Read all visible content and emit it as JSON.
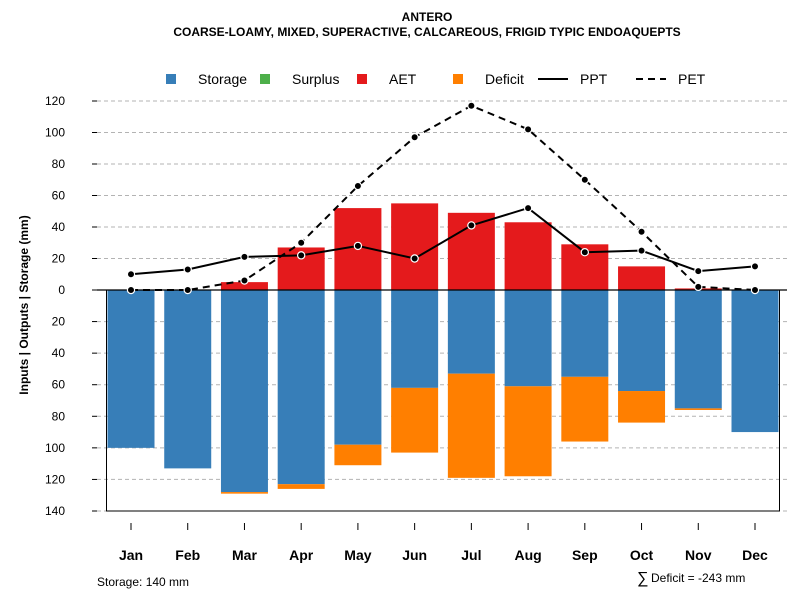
{
  "chart_data": {
    "type": "bar",
    "title": "ANTERO",
    "subtitle": "COARSE-LOAMY, MIXED, SUPERACTIVE, CALCAREOUS, FRIGID TYPIC ENDOAQUEPTS",
    "ylabel": "Inputs | Outputs | Storage    (mm)",
    "categories": [
      "Jan",
      "Feb",
      "Mar",
      "Apr",
      "May",
      "Jun",
      "Jul",
      "Aug",
      "Sep",
      "Oct",
      "Nov",
      "Dec"
    ],
    "upper_ylim": [
      0,
      120
    ],
    "upper_ticks": [
      "0",
      "20",
      "40",
      "60",
      "80",
      "100",
      "120"
    ],
    "lower_ylim": [
      0,
      140
    ],
    "lower_ticks": [
      "20",
      "40",
      "60",
      "80",
      "100",
      "120",
      "140"
    ],
    "legend": [
      {
        "key": "storage",
        "label": "Storage",
        "color": "#377EB8"
      },
      {
        "key": "surplus",
        "label": "Surplus",
        "color": "#4DAF4A"
      },
      {
        "key": "aet",
        "label": "AET",
        "color": "#E41A1C"
      },
      {
        "key": "deficit",
        "label": "Deficit",
        "color": "#FF7F00"
      },
      {
        "key": "ppt",
        "label": "PPT",
        "color": "#000000"
      },
      {
        "key": "pet",
        "label": "PET",
        "color": "#000000"
      }
    ],
    "series": [
      {
        "name": "AET",
        "values": [
          0,
          0,
          5,
          27,
          52,
          55,
          49,
          43,
          29,
          15,
          1,
          0
        ]
      },
      {
        "name": "Surplus",
        "values": [
          0,
          0,
          0,
          0,
          0,
          0,
          0,
          0,
          0,
          0,
          0,
          0
        ]
      },
      {
        "name": "Storage",
        "values": [
          100,
          113,
          128,
          123,
          98,
          62,
          53,
          61,
          55,
          64,
          75,
          90
        ]
      },
      {
        "name": "Deficit",
        "values": [
          0,
          0,
          1,
          3,
          13,
          41,
          66,
          57,
          41,
          20,
          1,
          0
        ]
      },
      {
        "name": "PPT",
        "values": [
          10,
          13,
          21,
          22,
          28,
          20,
          41,
          52,
          24,
          25,
          12,
          15
        ]
      },
      {
        "name": "PET",
        "values": [
          0,
          0,
          6,
          30,
          66,
          97,
          117,
          102,
          70,
          37,
          2,
          0
        ]
      }
    ],
    "storage_capacity": 140
  },
  "footer": {
    "storage_text": "Storage: 140 mm",
    "deficit_symbol": "∑",
    "deficit_text": "Deficit = -243 mm"
  }
}
